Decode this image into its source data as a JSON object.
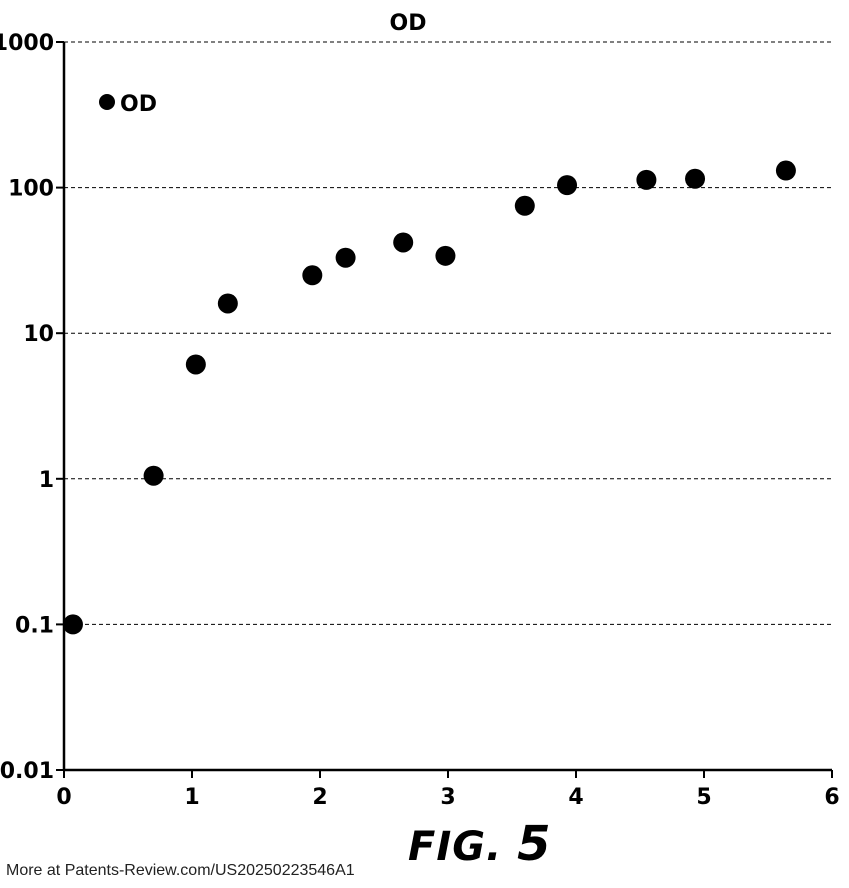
{
  "chart_data": {
    "type": "scatter",
    "title": "OD",
    "xlabel": "",
    "ylabel": "",
    "xlim": [
      0,
      6
    ],
    "ylim": [
      0.01,
      1000
    ],
    "yscale": "log",
    "grid": "horizontal dashed",
    "legend_position": "top-left",
    "x_ticks": [
      "0",
      "1",
      "2",
      "3",
      "4",
      "5",
      "6"
    ],
    "y_ticks": [
      "0.01",
      "0.1",
      "1",
      "10",
      "100",
      "1000"
    ],
    "series": [
      {
        "name": "OD",
        "color": "#000000",
        "points": [
          {
            "x": 0.07,
            "y": 0.1
          },
          {
            "x": 0.7,
            "y": 1.05
          },
          {
            "x": 1.03,
            "y": 6.1
          },
          {
            "x": 1.28,
            "y": 16
          },
          {
            "x": 1.94,
            "y": 25
          },
          {
            "x": 2.2,
            "y": 33
          },
          {
            "x": 2.65,
            "y": 42
          },
          {
            "x": 2.98,
            "y": 34
          },
          {
            "x": 3.6,
            "y": 75
          },
          {
            "x": 3.93,
            "y": 104
          },
          {
            "x": 4.55,
            "y": 113
          },
          {
            "x": 4.93,
            "y": 115
          },
          {
            "x": 5.64,
            "y": 131
          }
        ]
      }
    ]
  },
  "figure_caption": {
    "prefix": "FIG.",
    "number": "5"
  },
  "footer": "More at Patents-Review.com/US20250223546A1"
}
